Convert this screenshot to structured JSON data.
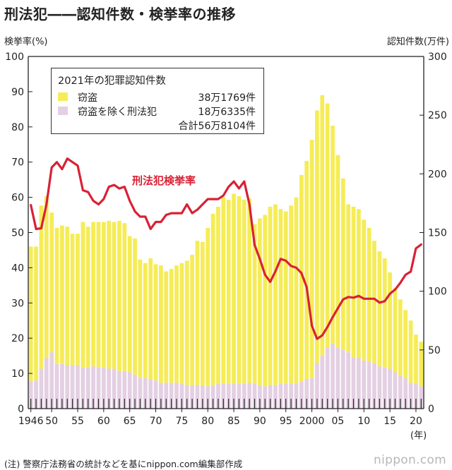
{
  "title": "刑法犯――認知件数・検挙率の推移",
  "y_left_label": "検挙率(%)",
  "y_right_label": "認知件数(万件)",
  "x_unit_label": "(年)",
  "footer": "(注) 警察庁法務省の統計などを基にnippon.com編集部作成",
  "brand": "nippon.com",
  "colors": {
    "larceny": "#f5ec57",
    "other": "#e4cfe3",
    "rate_line": "#d92135",
    "axis": "#222222"
  },
  "legend": {
    "title": "2021年の犯罪認知件数",
    "items": [
      {
        "label": "窃盗",
        "value": "38万1769件",
        "color": "#f5ec57"
      },
      {
        "label": "窃盗を除く刑法犯",
        "value": "18万6335件",
        "color": "#e4cfe3"
      }
    ],
    "total": "合計56万8104件"
  },
  "line_label": "刑法犯検挙率",
  "chart_data": {
    "type": "bar",
    "x": [
      1946,
      1947,
      1948,
      1949,
      1950,
      1951,
      1952,
      1953,
      1954,
      1955,
      1956,
      1957,
      1958,
      1959,
      1960,
      1961,
      1962,
      1963,
      1964,
      1965,
      1966,
      1967,
      1968,
      1969,
      1970,
      1971,
      1972,
      1973,
      1974,
      1975,
      1976,
      1977,
      1978,
      1979,
      1980,
      1981,
      1982,
      1983,
      1984,
      1985,
      1986,
      1987,
      1988,
      1989,
      1990,
      1991,
      1992,
      1993,
      1994,
      1995,
      1996,
      1997,
      1998,
      1999,
      2000,
      2001,
      2002,
      2003,
      2004,
      2005,
      2006,
      2007,
      2008,
      2009,
      2010,
      2011,
      2012,
      2013,
      2014,
      2015,
      2016,
      2017,
      2018,
      2019,
      2020,
      2021
    ],
    "x_tick_labels": [
      "1946",
      "50",
      "55",
      "60",
      "65",
      "70",
      "75",
      "80",
      "85",
      "90",
      "95",
      "2000",
      "05",
      "10",
      "15",
      "20"
    ],
    "x_tick_years": [
      1946,
      1950,
      1955,
      1960,
      1965,
      1970,
      1975,
      1980,
      1985,
      1990,
      1995,
      2000,
      2005,
      2010,
      2015,
      2020
    ],
    "series": [
      {
        "name": "窃盗",
        "axis": "right",
        "stack": true,
        "values": [
          115,
          114,
          139,
          138,
          119,
          116,
          118,
          118,
          112,
          112,
          124,
          120,
          123,
          124,
          124,
          126,
          125,
          128,
          126,
          116,
          116,
          101,
          98,
          103,
          99,
          100,
          95,
          97,
          100,
          103,
          106,
          111,
          123,
          122,
          135,
          146,
          151,
          159,
          157,
          162,
          160,
          157,
          157,
          136,
          142,
          146,
          152,
          154,
          149,
          147,
          152,
          159,
          176,
          186,
          203,
          215,
          222,
          208,
          186,
          164,
          146,
          126,
          128,
          127,
          120,
          114,
          104,
          98,
          93,
          82,
          72,
          65,
          58,
          53,
          42,
          38
        ]
      },
      {
        "name": "窃盗を除く刑法犯",
        "axis": "right",
        "stack": true,
        "values": [
          23,
          24,
          34,
          43,
          48,
          38,
          38,
          37,
          37,
          37,
          35,
          35,
          36,
          35,
          35,
          34,
          34,
          32,
          32,
          31,
          29,
          26,
          26,
          25,
          24,
          22,
          22,
          22,
          22,
          21,
          20,
          20,
          20,
          20,
          19,
          20,
          21,
          21,
          21,
          21,
          21,
          21,
          22,
          21,
          20,
          19,
          20,
          20,
          21,
          21,
          21,
          21,
          23,
          25,
          26,
          39,
          45,
          52,
          55,
          52,
          50,
          48,
          44,
          43,
          41,
          40,
          39,
          36,
          35,
          34,
          31,
          28,
          26,
          22,
          21,
          19
        ]
      },
      {
        "name": "刑法犯検挙率",
        "axis": "left",
        "type": "line",
        "values": [
          57.8,
          51,
          51.2,
          58,
          68.5,
          70,
          68,
          71,
          70,
          69,
          62,
          61.5,
          59,
          58,
          59.5,
          63,
          63.5,
          62.5,
          63,
          59,
          56,
          54.5,
          54.5,
          51,
          53,
          53,
          55,
          55.5,
          55.5,
          55.5,
          58,
          55.5,
          56.5,
          58,
          59.5,
          59.5,
          59.5,
          60.5,
          63,
          64.5,
          62.5,
          64.5,
          58,
          46.5,
          42.5,
          38,
          36,
          39,
          42.5,
          42,
          40.5,
          40,
          38.5,
          34.5,
          23.5,
          19.8,
          20.8,
          23.2,
          26,
          28.5,
          31,
          31.7,
          31.5,
          32,
          31.2,
          31.2,
          31.2,
          30.1,
          30.5,
          32.6,
          33.8,
          35.7,
          38,
          38.9,
          45.5,
          46.6
        ]
      }
    ],
    "y_left_range": [
      0,
      100
    ],
    "y_left_ticks": [
      0,
      10,
      20,
      30,
      40,
      50,
      60,
      70,
      80,
      90,
      100
    ],
    "y_right_range": [
      0,
      300
    ],
    "y_right_ticks": [
      0,
      50,
      100,
      150,
      200,
      250,
      300
    ],
    "grid": false
  }
}
